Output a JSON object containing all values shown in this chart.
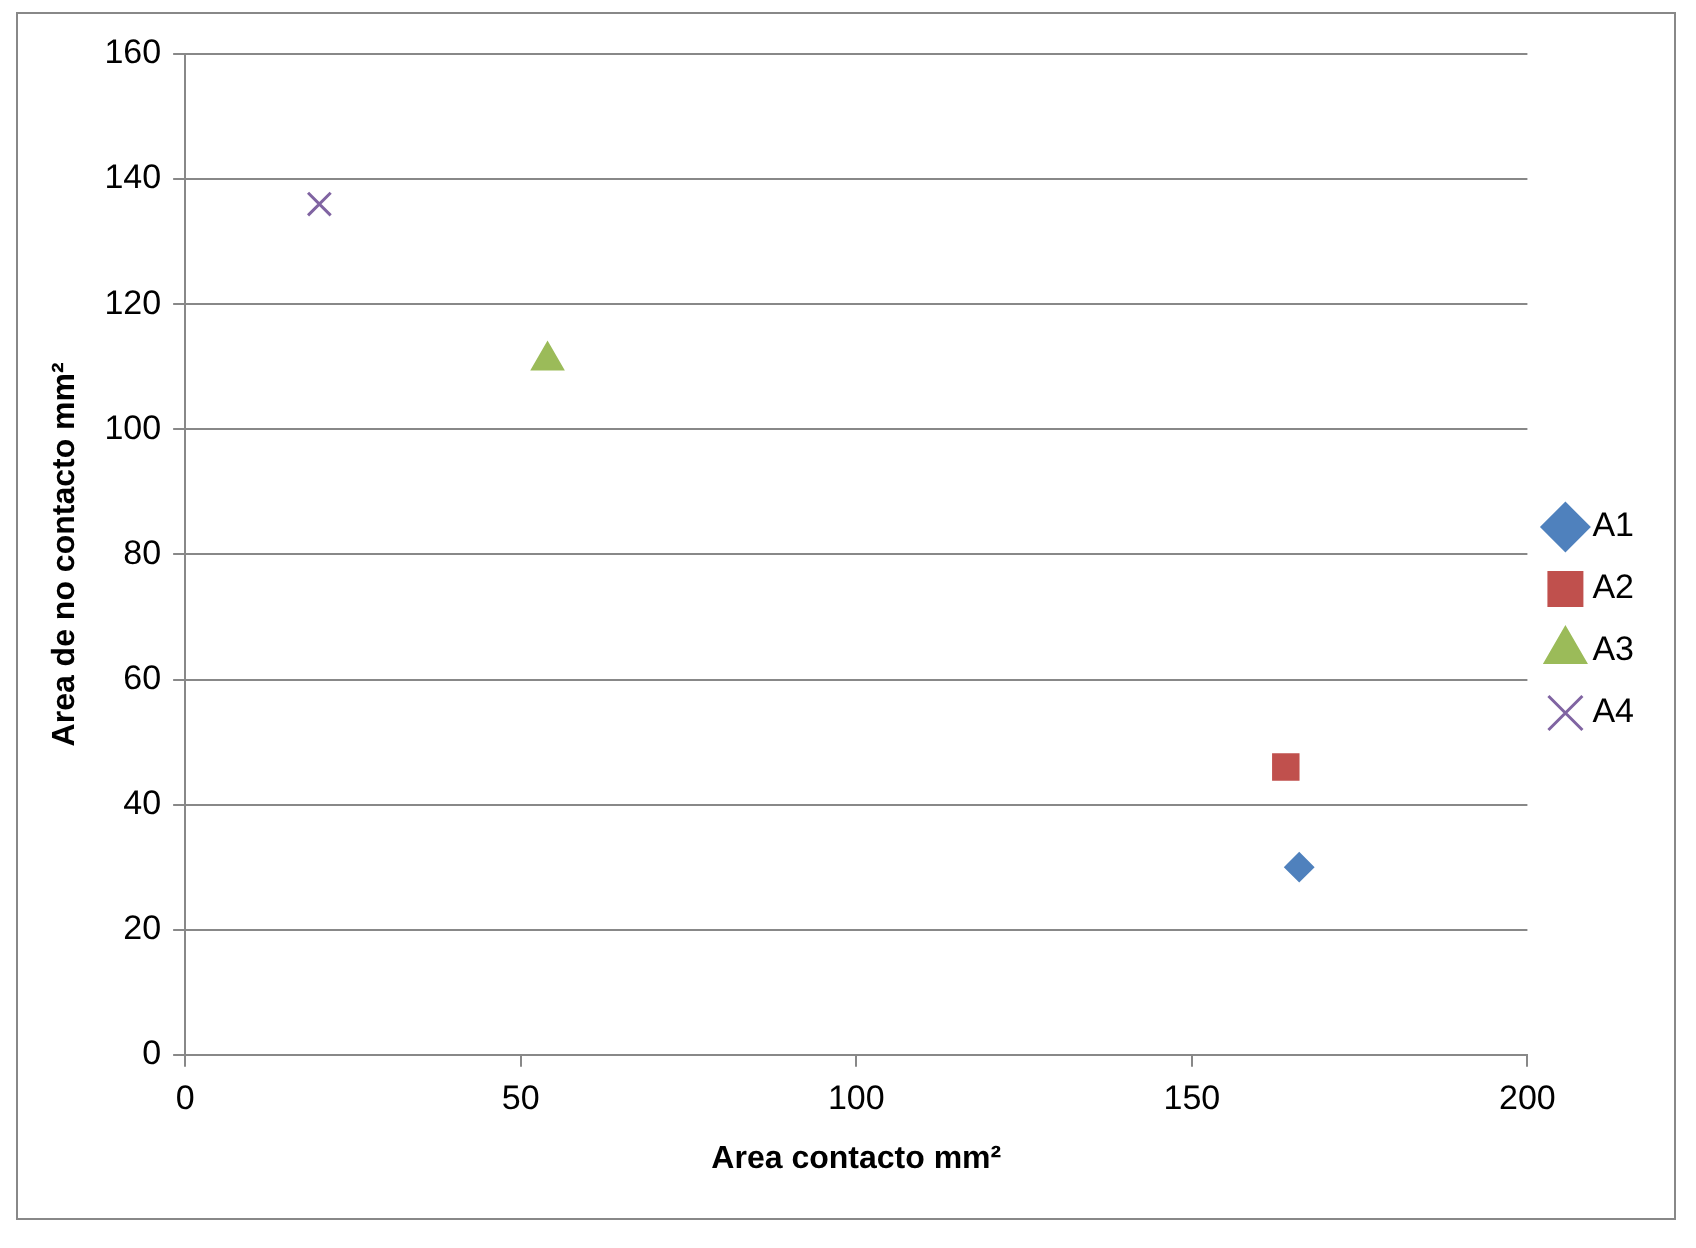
{
  "chart_data": {
    "type": "scatter",
    "xlabel": "Area contacto mm²",
    "ylabel": "Area de no contacto mm²",
    "xlim": [
      0,
      200
    ],
    "xticks": [
      0,
      50,
      100,
      150,
      200
    ],
    "ylim": [
      0,
      160
    ],
    "yticks": [
      0,
      20,
      40,
      60,
      80,
      100,
      120,
      140,
      160
    ],
    "grid": "y",
    "legend": "right",
    "series": [
      {
        "name": "A1",
        "color": "#4f81bd",
        "marker": "diamond",
        "x": [
          166
        ],
        "values": [
          30
        ]
      },
      {
        "name": "A2",
        "color": "#c0504d",
        "marker": "square",
        "x": [
          164
        ],
        "values": [
          46
        ]
      },
      {
        "name": "A3",
        "color": "#9bbb59",
        "marker": "triangle",
        "x": [
          54
        ],
        "values": [
          111
        ]
      },
      {
        "name": "A4",
        "color": "#8064a2",
        "marker": "cross",
        "x": [
          20
        ],
        "values": [
          136
        ]
      }
    ]
  }
}
